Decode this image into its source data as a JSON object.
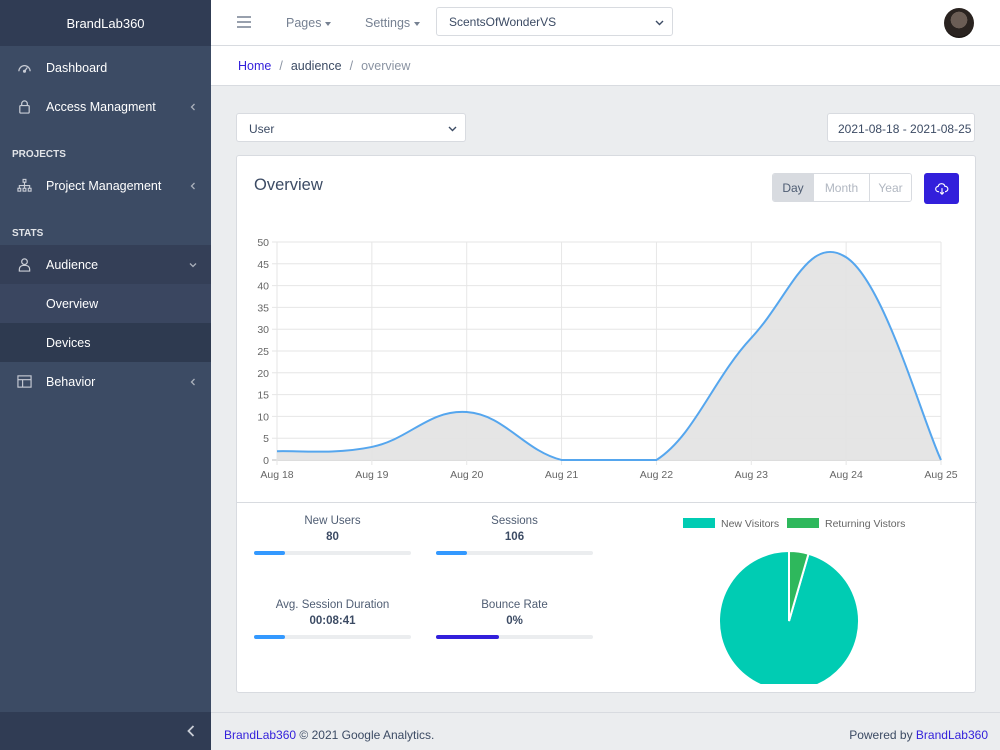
{
  "sidebar": {
    "brand": "BrandLab360",
    "items": [
      {
        "label": "Dashboard"
      },
      {
        "label": "Access Managment"
      }
    ],
    "section_projects": "PROJECTS",
    "project_management": "Project Management",
    "section_stats": "STATS",
    "audience": "Audience",
    "audience_children": [
      {
        "label": "Overview"
      },
      {
        "label": "Devices"
      }
    ],
    "behavior": "Behavior"
  },
  "header": {
    "pages": "Pages",
    "settings": "Settings",
    "project_selected": "ScentsOfWonderVS"
  },
  "breadcrumb": {
    "home": "Home",
    "sep": "/",
    "section": "audience",
    "current": "overview"
  },
  "filters": {
    "user_selected": "User",
    "date_range": "2021-08-18 - 2021-08-25"
  },
  "overview": {
    "title": "Overview",
    "periods": [
      "Day",
      "Month",
      "Year"
    ],
    "active_period": "Day",
    "accent_color": "#321fdb"
  },
  "stats": [
    {
      "label": "New Users",
      "value": "80",
      "progress": 0.2,
      "color": "#39f"
    },
    {
      "label": "Sessions",
      "value": "106",
      "progress": 0.2,
      "color": "#39f"
    },
    {
      "label": "Avg. Session Duration",
      "value": "00:08:41",
      "progress": 0.2,
      "color": "#39f"
    },
    {
      "label": "Bounce Rate",
      "value": "0%",
      "progress": 0.4,
      "color": "#321fdb"
    }
  ],
  "chart_data": [
    {
      "type": "area",
      "categories": [
        "Aug 18",
        "Aug 19",
        "Aug 20",
        "Aug 21",
        "Aug 22",
        "Aug 23",
        "Aug 24",
        "Aug 25"
      ],
      "series": [
        {
          "values": [
            2,
            3,
            11,
            0,
            0,
            28,
            46.5,
            0
          ]
        }
      ],
      "ylim": [
        0,
        50
      ],
      "yticks": [
        0,
        5,
        10,
        15,
        20,
        25,
        30,
        35,
        40,
        45,
        50
      ],
      "grid": true,
      "line_color": "#55a6ee",
      "fill_color": "#e4e4e4"
    },
    {
      "type": "pie",
      "labels": [
        "New Visitors",
        "Returning Vistors"
      ],
      "values": [
        95.5,
        4.5
      ],
      "colors": [
        "#00ccb3",
        "#2eb85c"
      ],
      "legend": "top"
    }
  ],
  "footer": {
    "brand": "BrandLab360",
    "copyright": "© 2021 Google Analytics.",
    "powered_by": "Powered by",
    "powered_brand": "BrandLab360"
  }
}
